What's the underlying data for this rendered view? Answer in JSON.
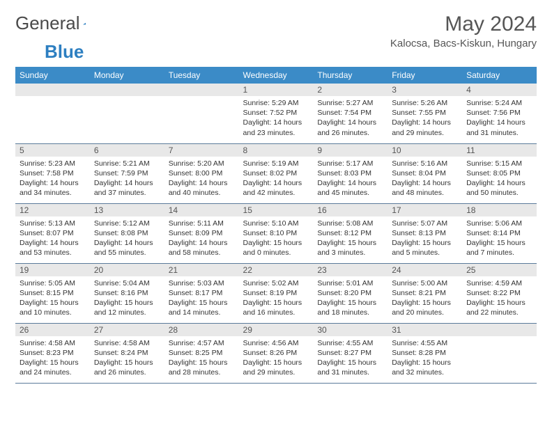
{
  "logo": {
    "text1": "General",
    "text2": "Blue"
  },
  "title": "May 2024",
  "location": "Kalocsa, Bacs-Kiskun, Hungary",
  "headers": [
    "Sunday",
    "Monday",
    "Tuesday",
    "Wednesday",
    "Thursday",
    "Friday",
    "Saturday"
  ],
  "colors": {
    "header_bg": "#3b8bc7",
    "header_text": "#ffffff",
    "daynum_bg": "#e8e8e8",
    "row_border": "#5a7a9a",
    "logo_blue": "#2d7fc1",
    "text": "#333333"
  },
  "weeks": [
    [
      null,
      null,
      null,
      {
        "n": "1",
        "sr": "5:29 AM",
        "ss": "7:52 PM",
        "dl": "14 hours and 23 minutes."
      },
      {
        "n": "2",
        "sr": "5:27 AM",
        "ss": "7:54 PM",
        "dl": "14 hours and 26 minutes."
      },
      {
        "n": "3",
        "sr": "5:26 AM",
        "ss": "7:55 PM",
        "dl": "14 hours and 29 minutes."
      },
      {
        "n": "4",
        "sr": "5:24 AM",
        "ss": "7:56 PM",
        "dl": "14 hours and 31 minutes."
      }
    ],
    [
      {
        "n": "5",
        "sr": "5:23 AM",
        "ss": "7:58 PM",
        "dl": "14 hours and 34 minutes."
      },
      {
        "n": "6",
        "sr": "5:21 AM",
        "ss": "7:59 PM",
        "dl": "14 hours and 37 minutes."
      },
      {
        "n": "7",
        "sr": "5:20 AM",
        "ss": "8:00 PM",
        "dl": "14 hours and 40 minutes."
      },
      {
        "n": "8",
        "sr": "5:19 AM",
        "ss": "8:02 PM",
        "dl": "14 hours and 42 minutes."
      },
      {
        "n": "9",
        "sr": "5:17 AM",
        "ss": "8:03 PM",
        "dl": "14 hours and 45 minutes."
      },
      {
        "n": "10",
        "sr": "5:16 AM",
        "ss": "8:04 PM",
        "dl": "14 hours and 48 minutes."
      },
      {
        "n": "11",
        "sr": "5:15 AM",
        "ss": "8:05 PM",
        "dl": "14 hours and 50 minutes."
      }
    ],
    [
      {
        "n": "12",
        "sr": "5:13 AM",
        "ss": "8:07 PM",
        "dl": "14 hours and 53 minutes."
      },
      {
        "n": "13",
        "sr": "5:12 AM",
        "ss": "8:08 PM",
        "dl": "14 hours and 55 minutes."
      },
      {
        "n": "14",
        "sr": "5:11 AM",
        "ss": "8:09 PM",
        "dl": "14 hours and 58 minutes."
      },
      {
        "n": "15",
        "sr": "5:10 AM",
        "ss": "8:10 PM",
        "dl": "15 hours and 0 minutes."
      },
      {
        "n": "16",
        "sr": "5:08 AM",
        "ss": "8:12 PM",
        "dl": "15 hours and 3 minutes."
      },
      {
        "n": "17",
        "sr": "5:07 AM",
        "ss": "8:13 PM",
        "dl": "15 hours and 5 minutes."
      },
      {
        "n": "18",
        "sr": "5:06 AM",
        "ss": "8:14 PM",
        "dl": "15 hours and 7 minutes."
      }
    ],
    [
      {
        "n": "19",
        "sr": "5:05 AM",
        "ss": "8:15 PM",
        "dl": "15 hours and 10 minutes."
      },
      {
        "n": "20",
        "sr": "5:04 AM",
        "ss": "8:16 PM",
        "dl": "15 hours and 12 minutes."
      },
      {
        "n": "21",
        "sr": "5:03 AM",
        "ss": "8:17 PM",
        "dl": "15 hours and 14 minutes."
      },
      {
        "n": "22",
        "sr": "5:02 AM",
        "ss": "8:19 PM",
        "dl": "15 hours and 16 minutes."
      },
      {
        "n": "23",
        "sr": "5:01 AM",
        "ss": "8:20 PM",
        "dl": "15 hours and 18 minutes."
      },
      {
        "n": "24",
        "sr": "5:00 AM",
        "ss": "8:21 PM",
        "dl": "15 hours and 20 minutes."
      },
      {
        "n": "25",
        "sr": "4:59 AM",
        "ss": "8:22 PM",
        "dl": "15 hours and 22 minutes."
      }
    ],
    [
      {
        "n": "26",
        "sr": "4:58 AM",
        "ss": "8:23 PM",
        "dl": "15 hours and 24 minutes."
      },
      {
        "n": "27",
        "sr": "4:58 AM",
        "ss": "8:24 PM",
        "dl": "15 hours and 26 minutes."
      },
      {
        "n": "28",
        "sr": "4:57 AM",
        "ss": "8:25 PM",
        "dl": "15 hours and 28 minutes."
      },
      {
        "n": "29",
        "sr": "4:56 AM",
        "ss": "8:26 PM",
        "dl": "15 hours and 29 minutes."
      },
      {
        "n": "30",
        "sr": "4:55 AM",
        "ss": "8:27 PM",
        "dl": "15 hours and 31 minutes."
      },
      {
        "n": "31",
        "sr": "4:55 AM",
        "ss": "8:28 PM",
        "dl": "15 hours and 32 minutes."
      },
      null
    ]
  ],
  "labels": {
    "sunrise": "Sunrise: ",
    "sunset": "Sunset: ",
    "daylight": "Daylight: "
  }
}
